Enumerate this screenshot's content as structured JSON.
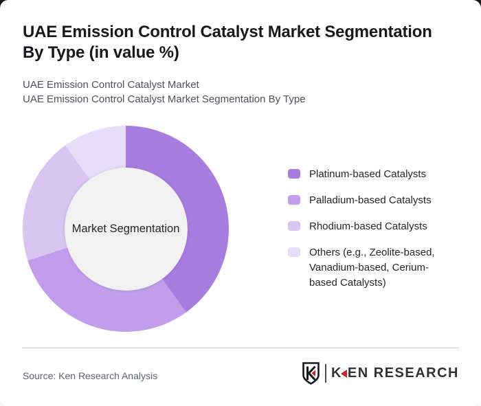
{
  "page": {
    "title_lines": [
      "UAE Emission Control Catalyst Market Segmentation",
      "By Type (in value %)"
    ],
    "subtitle_lines": [
      "UAE Emission Control Catalyst Market",
      "UAE Emission Control Catalyst Market Segmentation By Type"
    ]
  },
  "chart_data": {
    "type": "pie",
    "variant": "donut",
    "title": "UAE Emission Control Catalyst Market Segmentation By Type (in value %)",
    "center_label": "Market Segmentation",
    "categories": [
      "Platinum-based Catalysts",
      "Palladium-based Catalysts",
      "Rhodium-based Catalysts",
      "Others (e.g., Zeolite-based, Vanadium-based, Cerium-based Catalysts)"
    ],
    "values": [
      40,
      30,
      20,
      10
    ],
    "unit": "value %",
    "colors": [
      "#a87de0",
      "#c19deb",
      "#d9c5f1",
      "#e9dcf8"
    ],
    "start_angle_deg": 0,
    "direction": "clockwise",
    "legend_position": "right",
    "inner_circle_color": "#f1f1f2"
  },
  "footer": {
    "source": "Source: Ken Research Analysis",
    "logo": {
      "brand_k": "K",
      "brand_rest": "EN RESEARCH",
      "monogram": "K",
      "red": "#c1272d",
      "dark": "#17181c"
    }
  },
  "theme": {
    "divider": "#d2d2d2",
    "title_color": "#17181c",
    "subtitle_color": "#4c5260"
  }
}
